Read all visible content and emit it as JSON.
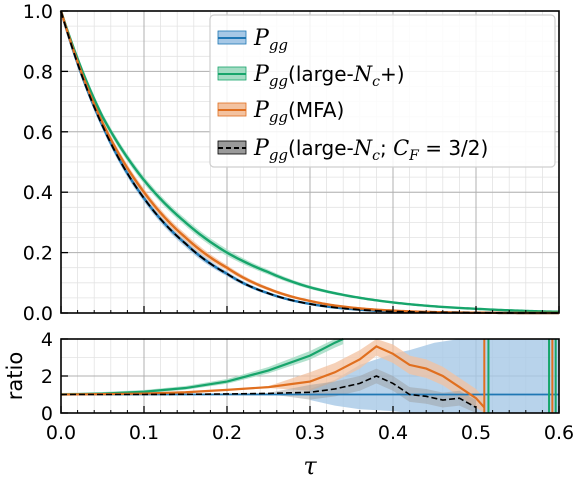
{
  "chart_data": [
    {
      "type": "line",
      "panel": "main",
      "xlabel": "",
      "ylabel": "",
      "xlim": [
        0.0,
        0.6
      ],
      "ylim": [
        0.0,
        1.0
      ],
      "grid": true,
      "minor_grid": true,
      "legend_placement": "top-right",
      "xticks": [
        "0.0",
        "0.1",
        "0.2",
        "0.3",
        "0.4",
        "0.5",
        "0.6"
      ],
      "yticks": [
        "0.0",
        "0.2",
        "0.4",
        "0.6",
        "0.8",
        "1.0"
      ],
      "x": [
        0.0,
        0.05,
        0.1,
        0.15,
        0.2,
        0.25,
        0.3,
        0.35,
        0.4,
        0.45,
        0.5,
        0.55,
        0.6
      ],
      "series": [
        {
          "name": "P_gg",
          "color": "#1f77b4",
          "band": true,
          "style": "solid",
          "values": [
            1.0,
            0.62,
            0.38,
            0.23,
            0.13,
            0.065,
            0.03,
            0.013,
            0.005,
            0.002,
            0.001,
            0.0,
            0.0
          ]
        },
        {
          "name": "P_gg(large-N_c+)",
          "color": "#17a56b",
          "band": true,
          "style": "solid",
          "values": [
            1.0,
            0.65,
            0.44,
            0.3,
            0.2,
            0.135,
            0.085,
            0.055,
            0.035,
            0.022,
            0.014,
            0.008,
            0.004
          ]
        },
        {
          "name": "P_gg(MFA)",
          "color": "#e06f1f",
          "band": true,
          "style": "solid",
          "values": [
            1.0,
            0.63,
            0.4,
            0.25,
            0.15,
            0.08,
            0.04,
            0.018,
            0.008,
            0.003,
            0.001,
            0.0,
            0.0
          ]
        },
        {
          "name": "P_gg(large-N_c; C_F=3/2)",
          "color": "#000000",
          "band": true,
          "style": "dashed",
          "values": [
            1.0,
            0.62,
            0.38,
            0.23,
            0.13,
            0.065,
            0.03,
            0.013,
            0.005,
            0.002,
            0.001,
            0.0,
            0.0
          ]
        }
      ]
    },
    {
      "type": "line",
      "panel": "ratio",
      "xlabel": "τ",
      "ylabel": "ratio",
      "xlim": [
        0.0,
        0.6
      ],
      "ylim": [
        0,
        4
      ],
      "grid": true,
      "xticks": [
        "0.0",
        "0.1",
        "0.2",
        "0.3",
        "0.4",
        "0.5",
        "0.6"
      ],
      "yticks": [
        "0",
        "2",
        "4"
      ],
      "series": [
        {
          "name": "P_gg",
          "color": "#1f77b4",
          "x": [
            0.0,
            0.6
          ],
          "values": [
            1.0,
            1.0
          ],
          "band_x": [
            0.3,
            0.33,
            0.36,
            0.4,
            0.42,
            0.45,
            0.48,
            0.5,
            0.55,
            0.6
          ],
          "band_hi": [
            1.3,
            1.8,
            2.6,
            3.2,
            3.4,
            3.8,
            4.0,
            4.0,
            4.0,
            4.0
          ],
          "band_lo": [
            0.7,
            0.4,
            0.2,
            0.1,
            0.0,
            0.0,
            0.0,
            0.0,
            0.0,
            0.0
          ]
        },
        {
          "name": "P_gg(large-N_c+)",
          "color": "#17a56b",
          "x": [
            0.0,
            0.05,
            0.1,
            0.15,
            0.2,
            0.25,
            0.3,
            0.33,
            0.34
          ],
          "values": [
            1.0,
            1.05,
            1.15,
            1.35,
            1.7,
            2.3,
            3.1,
            3.8,
            4.0
          ]
        },
        {
          "name": "P_gg(MFA)",
          "color": "#e06f1f",
          "x": [
            0.0,
            0.05,
            0.1,
            0.15,
            0.2,
            0.25,
            0.3,
            0.33,
            0.36,
            0.38,
            0.4,
            0.42,
            0.44,
            0.46,
            0.48,
            0.5,
            0.51
          ],
          "values": [
            1.0,
            1.02,
            1.05,
            1.12,
            1.25,
            1.4,
            1.7,
            2.2,
            2.9,
            3.6,
            3.2,
            2.6,
            2.4,
            2.0,
            1.4,
            0.8,
            0.3
          ]
        },
        {
          "name": "P_gg(large-N_c; C_F=3/2)",
          "color": "#000000",
          "x": [
            0.0,
            0.05,
            0.1,
            0.15,
            0.2,
            0.25,
            0.3,
            0.33,
            0.36,
            0.38,
            0.4,
            0.42,
            0.44,
            0.46,
            0.48,
            0.5
          ],
          "values": [
            1.0,
            1.0,
            1.0,
            1.01,
            1.03,
            1.06,
            1.12,
            1.3,
            1.6,
            2.0,
            1.6,
            1.0,
            0.9,
            0.7,
            0.8,
            0.3
          ]
        }
      ]
    }
  ],
  "legend": {
    "entries": [
      {
        "base": "P",
        "sub": "gg",
        "text": "",
        "color": "#1f77b4",
        "fill": "#a6c8e6",
        "style": "solid"
      },
      {
        "base": "P",
        "sub": "gg",
        "text": "(large-",
        "n": "N",
        "nsub": "c",
        "tail": "+)",
        "color": "#17a56b",
        "fill": "#a4dcc4",
        "style": "solid"
      },
      {
        "base": "P",
        "sub": "gg",
        "text": "(MFA)",
        "color": "#e06f1f",
        "fill": "#f3c2a0",
        "style": "solid"
      },
      {
        "base": "P",
        "sub": "gg",
        "text": "(large-",
        "n": "N",
        "nsub": "c",
        "mid": "; ",
        "cf": "C",
        "cfsub": "F",
        "tail": " = 3/2)",
        "color": "#000000",
        "fill": "#9a9a9a",
        "style": "dashed"
      }
    ]
  }
}
